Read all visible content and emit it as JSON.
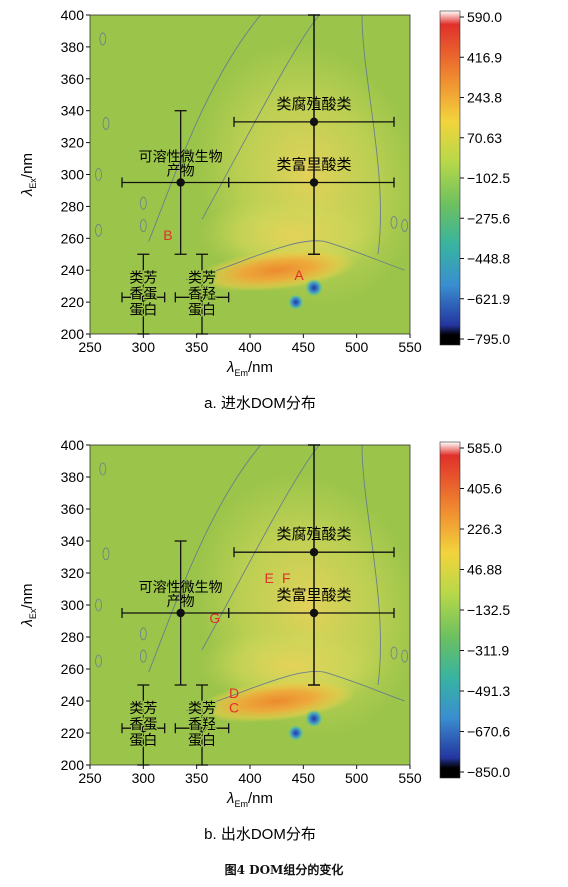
{
  "figure_caption": "图4 DOM组分的变化",
  "colors": {
    "bg": "#9bc44a",
    "band": "#cddc56",
    "hot": "#f0b23a",
    "core": "#e8842c",
    "marker": "#111111",
    "letter": "#e0302a"
  },
  "chart_data": [
    {
      "type": "heatmap",
      "caption": "a. 进水DOM分布",
      "xlabel": "λEm/nm",
      "ylabel": "λEx/nm",
      "xlim": [
        250,
        550
      ],
      "ylim": [
        200,
        400
      ],
      "xticks": [
        250,
        300,
        350,
        400,
        450,
        500,
        550
      ],
      "yticks": [
        200,
        220,
        240,
        260,
        280,
        300,
        320,
        340,
        360,
        380,
        400
      ],
      "colorbar_ticks": [
        "590.0",
        "416.9",
        "243.8",
        "70.63",
        "-102.5",
        "-275.6",
        "-448.8",
        "-621.9",
        "-795.0"
      ],
      "regions": [
        {
          "label": "类芳香蛋白",
          "lines": [
            "类芳",
            "香蛋",
            "蛋白"
          ],
          "x": 300,
          "y": 223,
          "x_range": [
            280,
            320
          ],
          "y_range": [
            200,
            250
          ]
        },
        {
          "label": "类芳香蛋白",
          "lines": [
            "类芳",
            "香羟",
            "蛋白"
          ],
          "x": 355,
          "y": 223,
          "x_range": [
            330,
            380
          ],
          "y_range": [
            200,
            250
          ]
        },
        {
          "label": "可溶性微生物产物",
          "lines": [
            "可溶性微生物",
            "产物"
          ],
          "x": 335,
          "y": 295,
          "x_range": [
            280,
            380
          ],
          "y_range": [
            250,
            340
          ]
        },
        {
          "label": "类富里酸类",
          "lines": [
            "类富里酸类"
          ],
          "x": 460,
          "y": 295,
          "x_range": [
            380,
            535
          ],
          "y_range": [
            250,
            400
          ]
        },
        {
          "label": "类腐殖酸类",
          "lines": [
            "类腐殖酸类"
          ],
          "x": 460,
          "y": 333,
          "x_range": [
            385,
            535
          ],
          "y_range": [
            250,
            400
          ]
        }
      ],
      "letters": [
        {
          "text": "A",
          "x": 446,
          "y": 237
        },
        {
          "text": "B",
          "x": 323,
          "y": 262
        }
      ]
    },
    {
      "type": "heatmap",
      "caption": "b. 出水DOM分布",
      "xlabel": "λEm/nm",
      "ylabel": "λEx/nm",
      "xlim": [
        250,
        550
      ],
      "ylim": [
        200,
        400
      ],
      "xticks": [
        250,
        300,
        350,
        400,
        450,
        500,
        550
      ],
      "yticks": [
        200,
        220,
        240,
        260,
        280,
        300,
        320,
        340,
        360,
        380,
        400
      ],
      "colorbar_ticks": [
        "585.0",
        "405.6",
        "226.3",
        "46.88",
        "-132.5",
        "-311.9",
        "-491.3",
        "-670.6",
        "-850.0"
      ],
      "regions": [
        {
          "label": "类芳香蛋白",
          "lines": [
            "类芳",
            "香蛋",
            "蛋白"
          ],
          "x": 300,
          "y": 223,
          "x_range": [
            280,
            320
          ],
          "y_range": [
            200,
            250
          ]
        },
        {
          "label": "类芳香蛋白",
          "lines": [
            "类芳",
            "香羟",
            "蛋白"
          ],
          "x": 355,
          "y": 223,
          "x_range": [
            330,
            380
          ],
          "y_range": [
            200,
            250
          ]
        },
        {
          "label": "可溶性微生物产物",
          "lines": [
            "可溶性微生物",
            "产物"
          ],
          "x": 335,
          "y": 295,
          "x_range": [
            280,
            380
          ],
          "y_range": [
            250,
            340
          ]
        },
        {
          "label": "类富里酸类",
          "lines": [
            "类富里酸类"
          ],
          "x": 460,
          "y": 295,
          "x_range": [
            380,
            535
          ],
          "y_range": [
            250,
            400
          ]
        },
        {
          "label": "类腐殖酸类",
          "lines": [
            "类腐殖酸类"
          ],
          "x": 460,
          "y": 333,
          "x_range": [
            385,
            535
          ],
          "y_range": [
            250,
            400
          ]
        }
      ],
      "letters": [
        {
          "text": "C",
          "x": 385,
          "y": 236
        },
        {
          "text": "D",
          "x": 385,
          "y": 245
        },
        {
          "text": "E",
          "x": 418,
          "y": 317
        },
        {
          "text": "F",
          "x": 434,
          "y": 317
        },
        {
          "text": "G",
          "x": 367,
          "y": 292
        }
      ]
    }
  ]
}
